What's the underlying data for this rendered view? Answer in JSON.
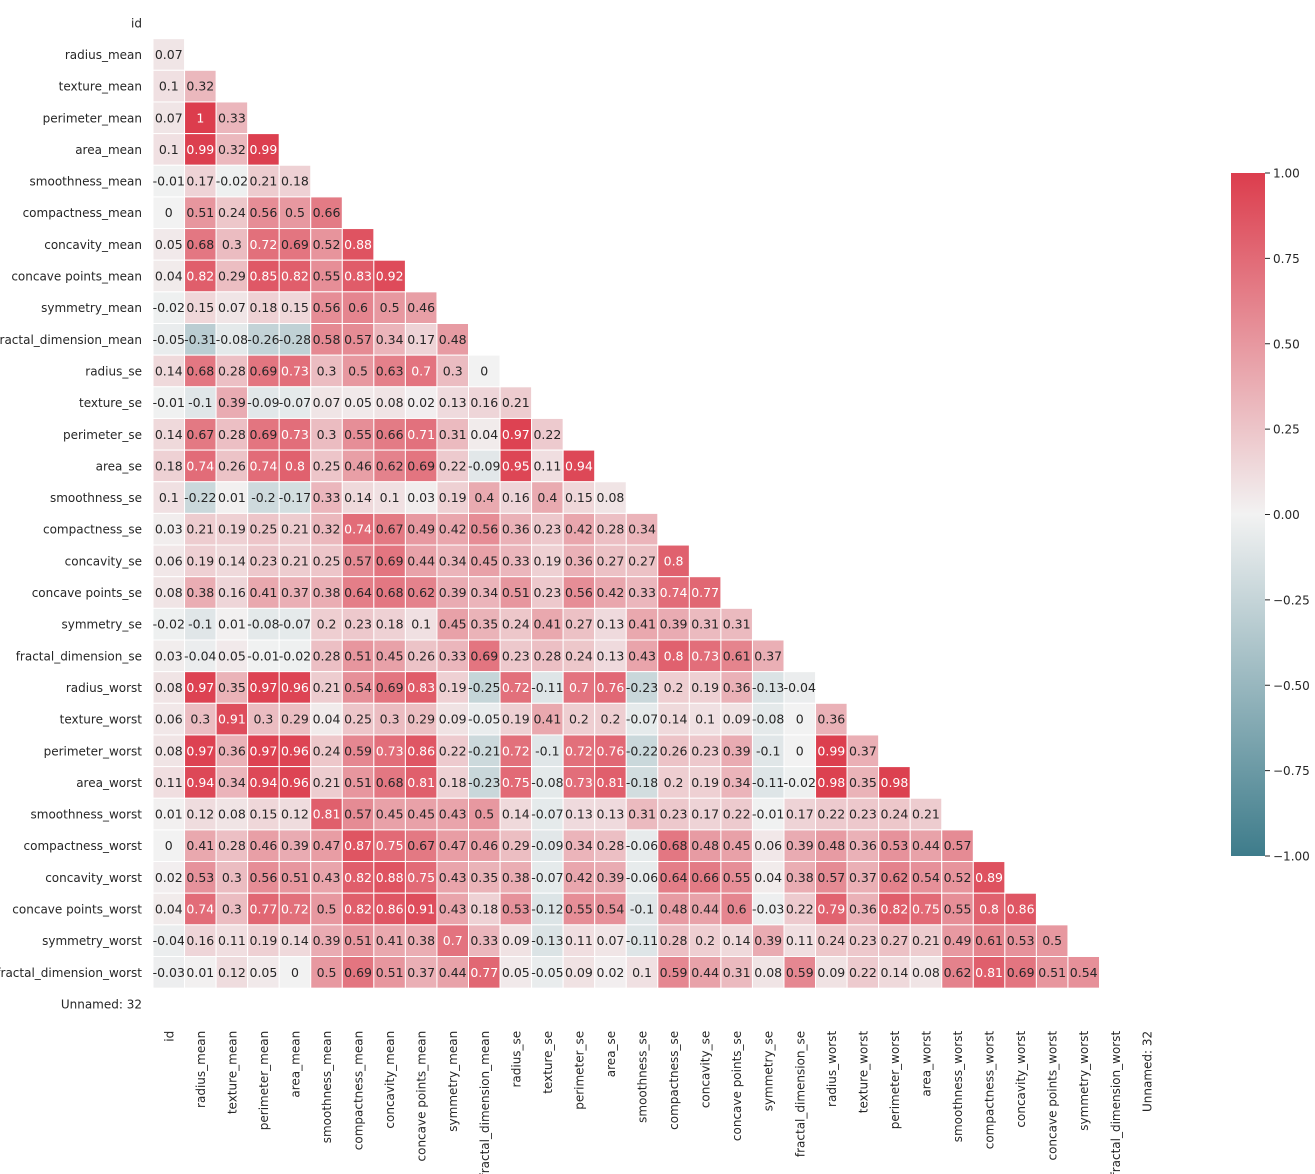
{
  "chart_data": {
    "type": "heatmap",
    "labels": [
      "id",
      "radius_mean",
      "texture_mean",
      "perimeter_mean",
      "area_mean",
      "smoothness_mean",
      "compactness_mean",
      "concavity_mean",
      "concave points_mean",
      "symmetry_mean",
      "fractal_dimension_mean",
      "radius_se",
      "texture_se",
      "perimeter_se",
      "area_se",
      "smoothness_se",
      "compactness_se",
      "concavity_se",
      "concave points_se",
      "symmetry_se",
      "fractal_dimension_se",
      "radius_worst",
      "texture_worst",
      "perimeter_worst",
      "area_worst",
      "smoothness_worst",
      "compactness_worst",
      "concavity_worst",
      "concave points_worst",
      "symmetry_worst",
      "fractal_dimension_worst",
      "Unnamed: 32"
    ],
    "mask": "upper-triangle",
    "lower_triangle_values": [
      [],
      [
        0.07
      ],
      [
        0.1,
        0.32
      ],
      [
        0.07,
        1,
        0.33
      ],
      [
        0.1,
        0.99,
        0.32,
        0.99
      ],
      [
        -0.01,
        0.17,
        -0.02,
        0.21,
        0.18
      ],
      [
        0,
        0.51,
        0.24,
        0.56,
        0.5,
        0.66
      ],
      [
        0.05,
        0.68,
        0.3,
        0.72,
        0.69,
        0.52,
        0.88
      ],
      [
        0.04,
        0.82,
        0.29,
        0.85,
        0.82,
        0.55,
        0.83,
        0.92
      ],
      [
        -0.02,
        0.15,
        0.07,
        0.18,
        0.15,
        0.56,
        0.6,
        0.5,
        0.46
      ],
      [
        -0.05,
        -0.31,
        -0.08,
        -0.26,
        -0.28,
        0.58,
        0.57,
        0.34,
        0.17,
        0.48
      ],
      [
        0.14,
        0.68,
        0.28,
        0.69,
        0.73,
        0.3,
        0.5,
        0.63,
        0.7,
        0.3,
        0
      ],
      [
        -0.01,
        -0.1,
        0.39,
        -0.09,
        -0.07,
        0.07,
        0.05,
        0.08,
        0.02,
        0.13,
        0.16,
        0.21
      ],
      [
        0.14,
        0.67,
        0.28,
        0.69,
        0.73,
        0.3,
        0.55,
        0.66,
        0.71,
        0.31,
        0.04,
        0.97,
        0.22
      ],
      [
        0.18,
        0.74,
        0.26,
        0.74,
        0.8,
        0.25,
        0.46,
        0.62,
        0.69,
        0.22,
        -0.09,
        0.95,
        0.11,
        0.94
      ],
      [
        0.1,
        -0.22,
        0.01,
        -0.2,
        -0.17,
        0.33,
        0.14,
        0.1,
        0.03,
        0.19,
        0.4,
        0.16,
        0.4,
        0.15,
        0.08
      ],
      [
        0.03,
        0.21,
        0.19,
        0.25,
        0.21,
        0.32,
        0.74,
        0.67,
        0.49,
        0.42,
        0.56,
        0.36,
        0.23,
        0.42,
        0.28,
        0.34
      ],
      [
        0.06,
        0.19,
        0.14,
        0.23,
        0.21,
        0.25,
        0.57,
        0.69,
        0.44,
        0.34,
        0.45,
        0.33,
        0.19,
        0.36,
        0.27,
        0.27,
        0.8
      ],
      [
        0.08,
        0.38,
        0.16,
        0.41,
        0.37,
        0.38,
        0.64,
        0.68,
        0.62,
        0.39,
        0.34,
        0.51,
        0.23,
        0.56,
        0.42,
        0.33,
        0.74,
        0.77
      ],
      [
        -0.02,
        -0.1,
        0.01,
        -0.08,
        -0.07,
        0.2,
        0.23,
        0.18,
        0.1,
        0.45,
        0.35,
        0.24,
        0.41,
        0.27,
        0.13,
        0.41,
        0.39,
        0.31,
        0.31
      ],
      [
        0.03,
        -0.04,
        0.05,
        -0.01,
        -0.02,
        0.28,
        0.51,
        0.45,
        0.26,
        0.33,
        0.69,
        0.23,
        0.28,
        0.24,
        0.13,
        0.43,
        0.8,
        0.73,
        0.61,
        0.37
      ],
      [
        0.08,
        0.97,
        0.35,
        0.97,
        0.96,
        0.21,
        0.54,
        0.69,
        0.83,
        0.19,
        -0.25,
        0.72,
        -0.11,
        0.7,
        0.76,
        -0.23,
        0.2,
        0.19,
        0.36,
        -0.13,
        -0.04
      ],
      [
        0.06,
        0.3,
        0.91,
        0.3,
        0.29,
        0.04,
        0.25,
        0.3,
        0.29,
        0.09,
        -0.05,
        0.19,
        0.41,
        0.2,
        0.2,
        -0.07,
        0.14,
        0.1,
        0.09,
        -0.08,
        0,
        0.36
      ],
      [
        0.08,
        0.97,
        0.36,
        0.97,
        0.96,
        0.24,
        0.59,
        0.73,
        0.86,
        0.22,
        -0.21,
        0.72,
        -0.1,
        0.72,
        0.76,
        -0.22,
        0.26,
        0.23,
        0.39,
        -0.1,
        0,
        0.99,
        0.37
      ],
      [
        0.11,
        0.94,
        0.34,
        0.94,
        0.96,
        0.21,
        0.51,
        0.68,
        0.81,
        0.18,
        -0.23,
        0.75,
        -0.08,
        0.73,
        0.81,
        -0.18,
        0.2,
        0.19,
        0.34,
        -0.11,
        -0.02,
        0.98,
        0.35,
        0.98
      ],
      [
        0.01,
        0.12,
        0.08,
        0.15,
        0.12,
        0.81,
        0.57,
        0.45,
        0.45,
        0.43,
        0.5,
        0.14,
        -0.07,
        0.13,
        0.13,
        0.31,
        0.23,
        0.17,
        0.22,
        -0.01,
        0.17,
        0.22,
        0.23,
        0.24,
        0.21
      ],
      [
        0,
        0.41,
        0.28,
        0.46,
        0.39,
        0.47,
        0.87,
        0.75,
        0.67,
        0.47,
        0.46,
        0.29,
        -0.09,
        0.34,
        0.28,
        -0.06,
        0.68,
        0.48,
        0.45,
        0.06,
        0.39,
        0.48,
        0.36,
        0.53,
        0.44,
        0.57
      ],
      [
        0.02,
        0.53,
        0.3,
        0.56,
        0.51,
        0.43,
        0.82,
        0.88,
        0.75,
        0.43,
        0.35,
        0.38,
        -0.07,
        0.42,
        0.39,
        -0.06,
        0.64,
        0.66,
        0.55,
        0.04,
        0.38,
        0.57,
        0.37,
        0.62,
        0.54,
        0.52,
        0.89
      ],
      [
        0.04,
        0.74,
        0.3,
        0.77,
        0.72,
        0.5,
        0.82,
        0.86,
        0.91,
        0.43,
        0.18,
        0.53,
        -0.12,
        0.55,
        0.54,
        -0.1,
        0.48,
        0.44,
        0.6,
        -0.03,
        0.22,
        0.79,
        0.36,
        0.82,
        0.75,
        0.55,
        0.8,
        0.86
      ],
      [
        -0.04,
        0.16,
        0.11,
        0.19,
        0.14,
        0.39,
        0.51,
        0.41,
        0.38,
        0.7,
        0.33,
        0.09,
        -0.13,
        0.11,
        0.07,
        -0.11,
        0.28,
        0.2,
        0.14,
        0.39,
        0.11,
        0.24,
        0.23,
        0.27,
        0.21,
        0.49,
        0.61,
        0.53,
        0.5
      ],
      [
        -0.03,
        0.01,
        0.12,
        0.05,
        0,
        0.5,
        0.69,
        0.51,
        0.37,
        0.44,
        0.77,
        0.05,
        -0.05,
        0.09,
        0.02,
        0.1,
        0.59,
        0.44,
        0.31,
        0.08,
        0.59,
        0.09,
        0.22,
        0.14,
        0.08,
        0.62,
        0.81,
        0.69,
        0.51,
        0.54
      ],
      []
    ],
    "value_range": [
      -1,
      1
    ],
    "colormap": {
      "negative": "#3e7c8b",
      "center": "#f2f2f2",
      "positive": "#dc3d4d"
    },
    "colorbar": {
      "ticks": [
        1.0,
        0.75,
        0.5,
        0.25,
        0.0,
        -0.25,
        -0.5,
        -0.75,
        -1.0
      ],
      "tick_labels": [
        "1.00",
        "0.75",
        "0.50",
        "0.25",
        "0.00",
        "−0.25",
        "−0.50",
        "−0.75",
        "−1.00"
      ],
      "placement": "right"
    },
    "title": "",
    "xlabel": "",
    "ylabel": ""
  }
}
